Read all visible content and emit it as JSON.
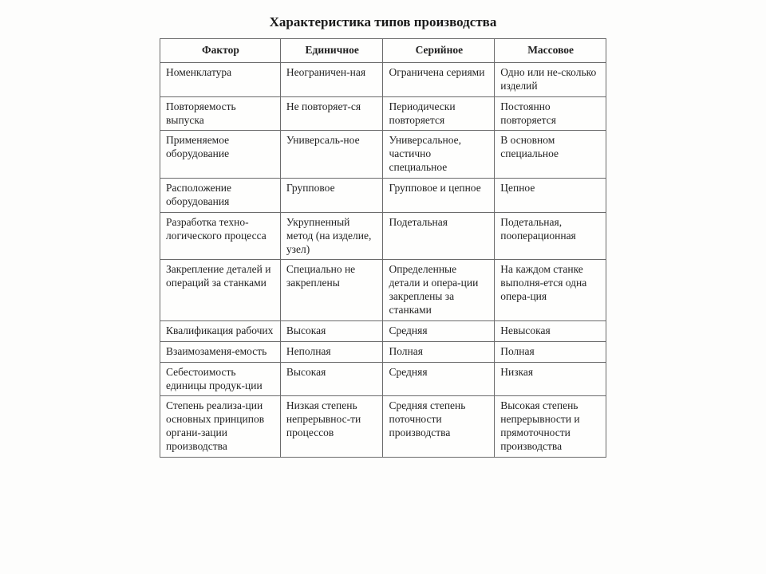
{
  "doc": {
    "title": "Характеристика типов производства",
    "faded_label": ""
  },
  "table": {
    "headers": [
      "Фактор",
      "Единичное",
      "Серийное",
      "Массовое"
    ],
    "rows": [
      [
        "Номенклатура",
        "Неограничен-ная",
        "Ограничена сериями",
        "Одно или не-сколько изделий"
      ],
      [
        "Повторяемость выпуска",
        "Не повторяет-ся",
        "Периодически повторяется",
        "Постоянно повторяется"
      ],
      [
        "Применяемое оборудование",
        "Универсаль-ное",
        "Универсальное, частично специальное",
        "В основном специальное"
      ],
      [
        "Расположение оборудования",
        "Групповое",
        "Групповое и цепное",
        "Цепное"
      ],
      [
        "Разработка техно-логического процесса",
        "Укрупненный метод (на изделие, узел)",
        "Подетальная",
        "Подетальная, пооперационная"
      ],
      [
        "Закрепление деталей и операций за станками",
        "Специально не закреплены",
        "Определенные детали и опера-ции закреплены за станками",
        "На каждом станке выполня-ется одна опера-ция"
      ],
      [
        "Квалификация рабочих",
        "Высокая",
        "Средняя",
        "Невысокая"
      ],
      [
        "Взаимозаменя-емость",
        "Неполная",
        "Полная",
        "Полная"
      ],
      [
        "Себестоимость единицы продук-ции",
        "Высокая",
        "Средняя",
        "Низкая"
      ],
      [
        "Степень реализа-ции основных принципов органи-зации производства",
        "Низкая степень непрерывнос-ти процессов",
        "Средняя степень поточности производства",
        "Высокая степень непрерывности и прямоточности производства"
      ]
    ]
  }
}
